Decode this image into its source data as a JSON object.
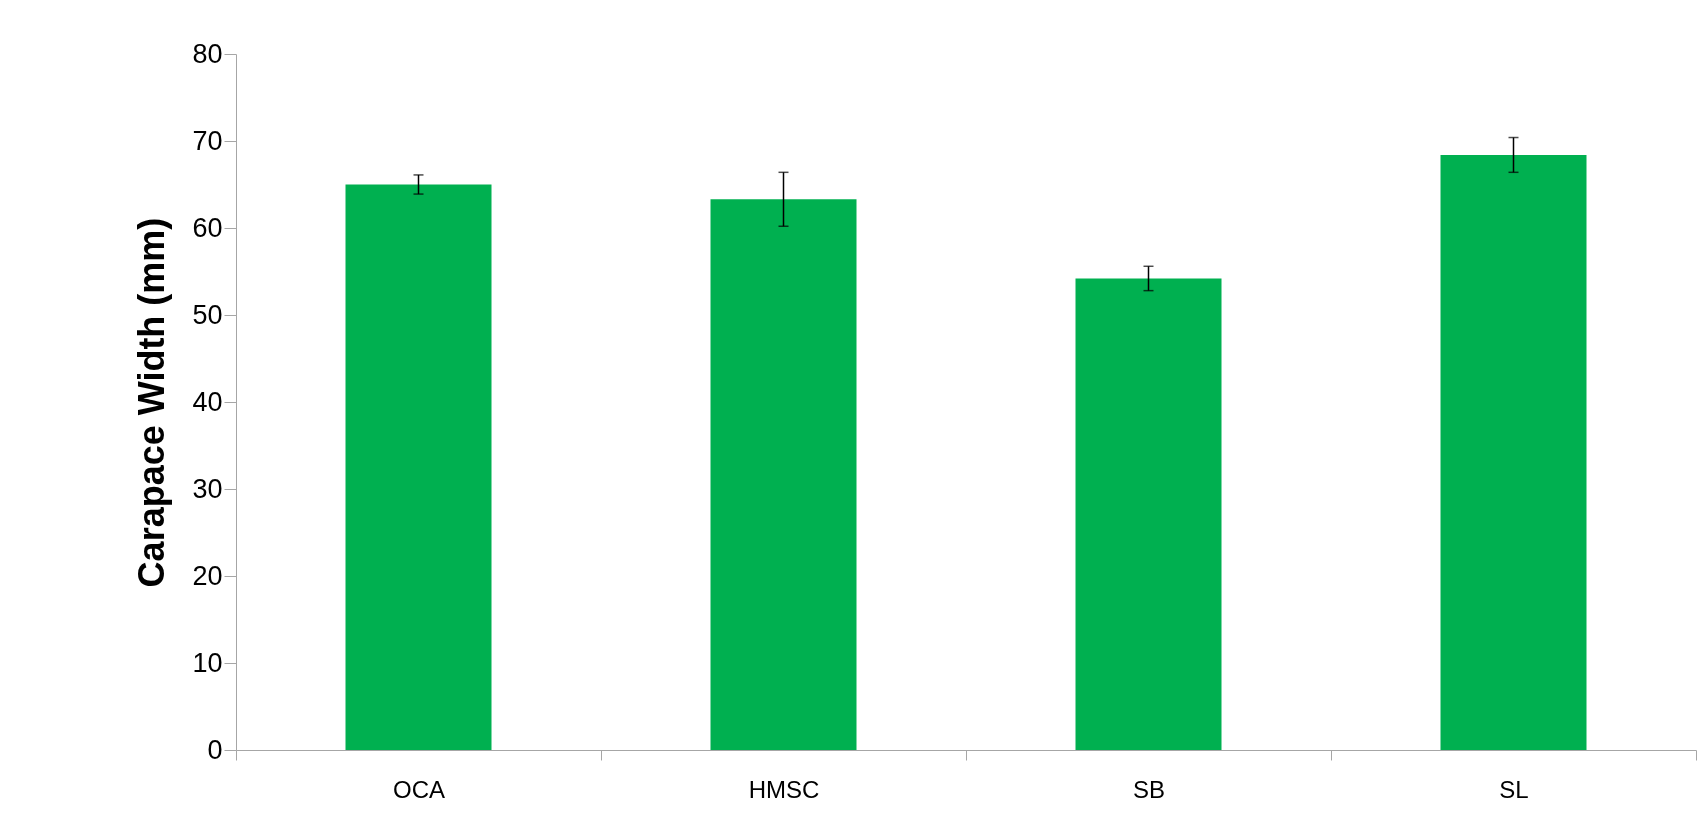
{
  "chart_data": {
    "type": "bar",
    "ylabel": "Carapace Width (mm)",
    "categories": [
      "OCA",
      "HMSC",
      "SB",
      "SL"
    ],
    "values": [
      65.0,
      63.3,
      54.2,
      68.4
    ],
    "errors": [
      1.1,
      3.1,
      1.4,
      2.0
    ],
    "color": "#00b050",
    "ylim": [
      0,
      80
    ],
    "yticks": [
      0,
      10,
      20,
      30,
      40,
      50,
      60,
      70,
      80
    ],
    "grid": false
  }
}
